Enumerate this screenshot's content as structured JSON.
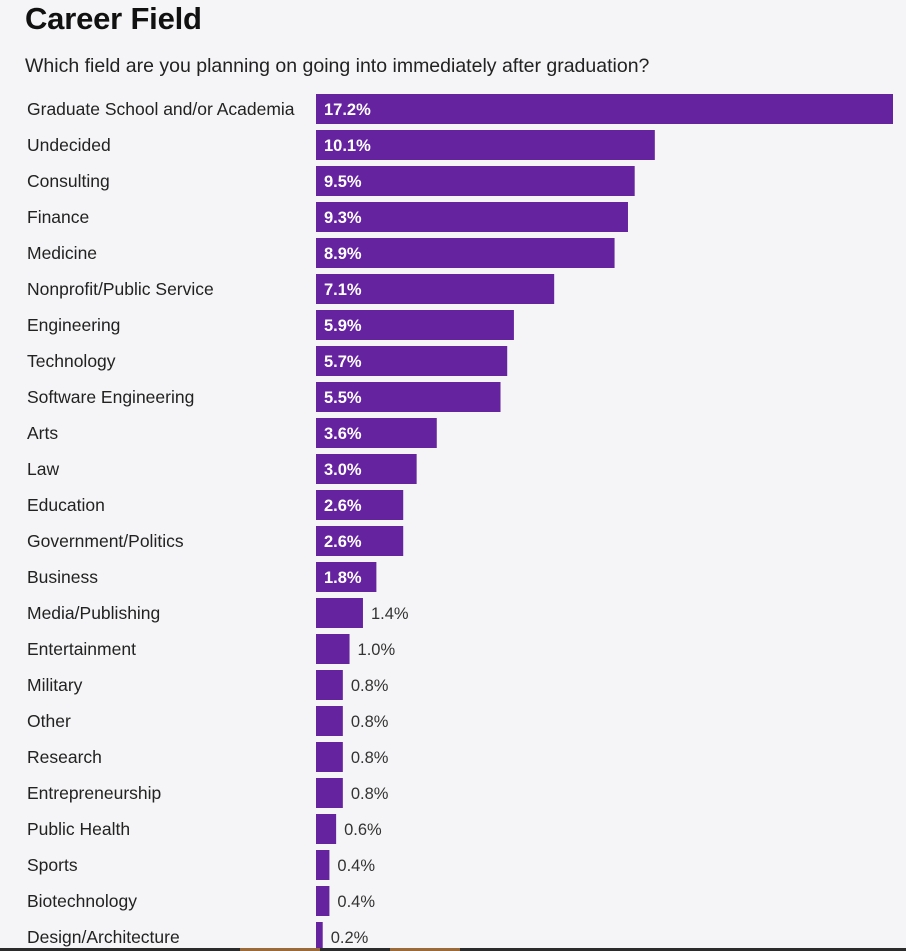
{
  "chart_data": {
    "type": "bar",
    "orientation": "horizontal",
    "title": "Career Field",
    "subtitle": "Which field are you planning on going into immediately after graduation?",
    "bar_color": "#66239f",
    "categories": [
      "Graduate School and/or Academia",
      "Undecided",
      "Consulting",
      "Finance",
      "Medicine",
      "Nonprofit/Public Service",
      "Engineering",
      "Technology",
      "Software Engineering",
      "Arts",
      "Law",
      "Education",
      "Government/Politics",
      "Business",
      "Media/Publishing",
      "Entertainment",
      "Military",
      "Other",
      "Research",
      "Entrepreneurship",
      "Public Health",
      "Sports",
      "Biotechnology",
      "Design/Architecture"
    ],
    "values": [
      17.2,
      10.1,
      9.5,
      9.3,
      8.9,
      7.1,
      5.9,
      5.7,
      5.5,
      3.6,
      3.0,
      2.6,
      2.6,
      1.8,
      1.4,
      1.0,
      0.8,
      0.8,
      0.8,
      0.8,
      0.6,
      0.4,
      0.4,
      0.2
    ],
    "value_labels": [
      "17.2%",
      "10.1%",
      "9.5%",
      "9.3%",
      "8.9%",
      "7.1%",
      "5.9%",
      "5.7%",
      "5.5%",
      "3.6%",
      "3.0%",
      "2.6%",
      "2.6%",
      "1.8%",
      "1.4%",
      "1.0%",
      "0.8%",
      "0.8%",
      "0.8%",
      "0.8%",
      "0.6%",
      "0.4%",
      "0.4%",
      "0.2%"
    ],
    "unit": "%",
    "xlim": [
      0,
      17.2
    ],
    "grid": false,
    "legend": "none"
  }
}
